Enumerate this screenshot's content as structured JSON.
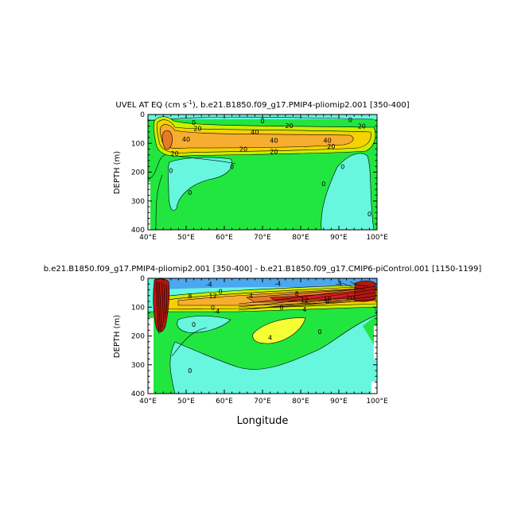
{
  "chart_data": [
    {
      "type": "heatmap",
      "title_prefix": "UVEL AT EQ (cm s",
      "title_exp": "-1",
      "title_suffix": "), b.e21.B1850.f09_g17.PMIP4-pliomip2.001 [350-400]",
      "ylabel": "DEPTH (m)",
      "xlabel": "",
      "xlim": [
        40,
        100
      ],
      "ylim": [
        0,
        400
      ],
      "y_inverted": true,
      "x_ticks": [
        {
          "value": 40,
          "label": "40°E"
        },
        {
          "value": 50,
          "label": "50°E"
        },
        {
          "value": 60,
          "label": "60°E"
        },
        {
          "value": 70,
          "label": "70°E"
        },
        {
          "value": 80,
          "label": "80°E"
        },
        {
          "value": 90,
          "label": "90°E"
        },
        {
          "value": 100,
          "label": "100°E"
        }
      ],
      "y_ticks": [
        0,
        100,
        200,
        300,
        400
      ],
      "contour_labels": [
        {
          "lon": 52,
          "depth": 28,
          "text": "0"
        },
        {
          "lon": 70,
          "depth": 22,
          "text": "0"
        },
        {
          "lon": 93,
          "depth": 18,
          "text": "0"
        },
        {
          "lon": 53,
          "depth": 48,
          "text": "20"
        },
        {
          "lon": 77,
          "depth": 38,
          "text": "20"
        },
        {
          "lon": 96,
          "depth": 40,
          "text": "20"
        },
        {
          "lon": 68,
          "depth": 60,
          "text": "40"
        },
        {
          "lon": 50,
          "depth": 85,
          "text": "40"
        },
        {
          "lon": 73,
          "depth": 90,
          "text": "40"
        },
        {
          "lon": 87,
          "depth": 90,
          "text": "40"
        },
        {
          "lon": 65,
          "depth": 120,
          "text": "20"
        },
        {
          "lon": 73,
          "depth": 128,
          "text": "20"
        },
        {
          "lon": 88,
          "depth": 110,
          "text": "20"
        },
        {
          "lon": 47,
          "depth": 135,
          "text": "20"
        },
        {
          "lon": 62,
          "depth": 180,
          "text": "0"
        },
        {
          "lon": 46,
          "depth": 195,
          "text": "0"
        },
        {
          "lon": 51,
          "depth": 270,
          "text": "0"
        },
        {
          "lon": 91,
          "depth": 180,
          "text": "0"
        },
        {
          "lon": 86,
          "depth": 240,
          "text": "0"
        },
        {
          "lon": 98,
          "depth": 345,
          "text": "0"
        }
      ]
    },
    {
      "type": "heatmap",
      "title": "b.e21.B1850.f09_g17.PMIP4-pliomip2.001 [350-400] - b.e21.B1850.f09_g17.CMIP6-piControl.001 [1150-1199]",
      "ylabel": "DEPTH (m)",
      "xlabel": "Longitude",
      "xlim": [
        40,
        100
      ],
      "ylim": [
        0,
        400
      ],
      "y_inverted": true,
      "x_ticks": [
        {
          "value": 40,
          "label": "40°E"
        },
        {
          "value": 50,
          "label": "50°E"
        },
        {
          "value": 60,
          "label": "60°E"
        },
        {
          "value": 70,
          "label": "70°E"
        },
        {
          "value": 80,
          "label": "80°E"
        },
        {
          "value": 90,
          "label": "90°E"
        },
        {
          "value": 100,
          "label": "100°E"
        }
      ],
      "y_ticks": [
        0,
        100,
        200,
        300,
        400
      ],
      "contour_labels": [
        {
          "lon": 56,
          "depth": 20,
          "text": "-4"
        },
        {
          "lon": 74,
          "depth": 18,
          "text": "-4"
        },
        {
          "lon": 90,
          "depth": 18,
          "text": "-4"
        },
        {
          "lon": 59,
          "depth": 45,
          "text": "0"
        },
        {
          "lon": 51,
          "depth": 60,
          "text": "8"
        },
        {
          "lon": 57,
          "depth": 60,
          "text": "12"
        },
        {
          "lon": 67,
          "depth": 60,
          "text": "4"
        },
        {
          "lon": 79,
          "depth": 52,
          "text": "8"
        },
        {
          "lon": 81,
          "depth": 75,
          "text": "12"
        },
        {
          "lon": 87,
          "depth": 80,
          "text": "8"
        },
        {
          "lon": 93,
          "depth": 68,
          "text": "20"
        },
        {
          "lon": 87,
          "depth": 70,
          "text": "16"
        },
        {
          "lon": 57,
          "depth": 100,
          "text": "0"
        },
        {
          "lon": 75,
          "depth": 100,
          "text": "0"
        },
        {
          "lon": 81,
          "depth": 108,
          "text": "4"
        },
        {
          "lon": 58,
          "depth": 115,
          "text": "-4"
        },
        {
          "lon": 52,
          "depth": 160,
          "text": "0"
        },
        {
          "lon": 72,
          "depth": 205,
          "text": "4"
        },
        {
          "lon": 85,
          "depth": 185,
          "text": "0"
        },
        {
          "lon": 51,
          "depth": 320,
          "text": "0"
        }
      ]
    }
  ]
}
